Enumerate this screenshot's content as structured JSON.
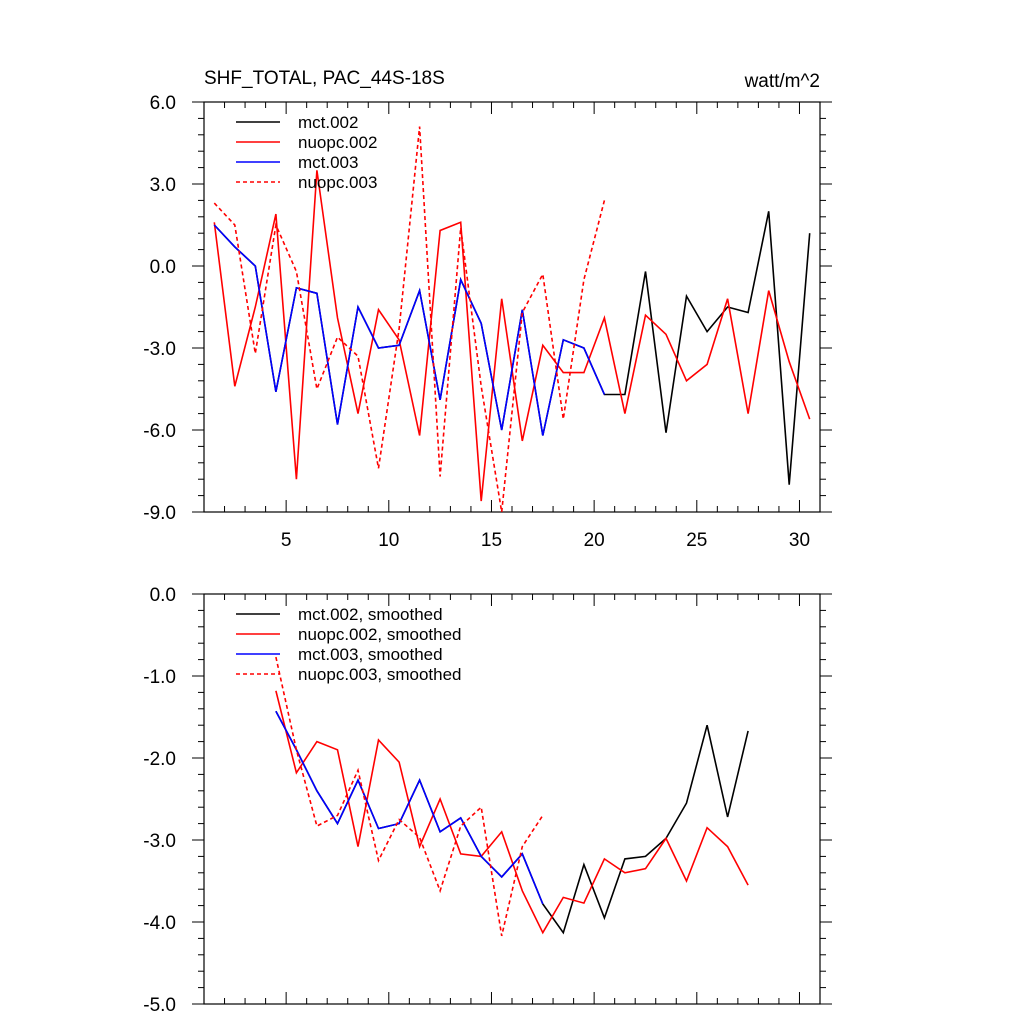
{
  "chart_data": [
    {
      "type": "line",
      "title": "SHF_TOTAL, PAC_44S-18S",
      "units": "watt/m^2",
      "xlim": [
        1,
        31
      ],
      "ylim": [
        -9.0,
        6.0
      ],
      "x_ticks": [
        5,
        10,
        15,
        20,
        25,
        30
      ],
      "x_tick_labels": [
        "5",
        "10",
        "15",
        "20",
        "25",
        "30"
      ],
      "y_ticks": [
        -9.0,
        -6.0,
        -3.0,
        0.0,
        3.0,
        6.0
      ],
      "y_tick_labels": [
        "-9.0",
        "-6.0",
        "-3.0",
        "0.0",
        "3.0",
        "6.0"
      ],
      "legend_position": "top-left",
      "series": [
        {
          "name": "mct.002",
          "color": "#000000",
          "dash": "solid",
          "x": [
            1.5,
            2.5,
            3.5,
            4.5,
            5.5,
            6.5,
            7.5,
            8.5,
            9.5,
            10.5,
            11.5,
            12.5,
            13.5,
            14.5,
            15.5,
            16.5,
            17.5,
            18.5,
            19.5,
            20.5,
            21.5,
            22.5,
            23.5,
            24.5,
            25.5,
            26.5,
            27.5,
            28.5,
            29.5,
            30.5
          ],
          "values": [
            1.5,
            0.7,
            0.0,
            -4.6,
            -0.8,
            -1.0,
            -5.8,
            -1.5,
            -3.0,
            -2.9,
            -0.9,
            -4.9,
            -0.5,
            -2.1,
            -6.0,
            -1.6,
            -6.2,
            -2.7,
            -3.0,
            -4.7,
            -4.7,
            -0.2,
            -6.1,
            -1.1,
            -2.4,
            -1.5,
            -1.7,
            2.0,
            -8.0,
            1.2
          ]
        },
        {
          "name": "nuopc.002",
          "color": "#ff0000",
          "dash": "solid",
          "x": [
            1.5,
            2.5,
            3.5,
            4.5,
            5.5,
            6.5,
            7.5,
            8.5,
            9.5,
            10.5,
            11.5,
            12.5,
            13.5,
            14.5,
            15.5,
            16.5,
            17.5,
            18.5,
            19.5,
            20.5,
            21.5,
            22.5,
            23.5,
            24.5,
            25.5,
            26.5,
            27.5,
            28.5,
            29.5,
            30.5
          ],
          "values": [
            1.6,
            -4.4,
            -1.5,
            1.9,
            -7.8,
            3.5,
            -1.9,
            -5.4,
            -1.6,
            -2.7,
            -6.2,
            1.3,
            1.6,
            -8.6,
            -1.2,
            -6.4,
            -2.9,
            -3.9,
            -3.9,
            -1.9,
            -5.4,
            -1.8,
            -2.5,
            -4.2,
            -3.6,
            -1.2,
            -5.4,
            -0.9,
            -3.5,
            -5.6
          ]
        },
        {
          "name": "mct.003",
          "color": "#0000ff",
          "dash": "solid",
          "x": [
            1.5,
            2.5,
            3.5,
            4.5,
            5.5,
            6.5,
            7.5,
            8.5,
            9.5,
            10.5,
            11.5,
            12.5,
            13.5,
            14.5,
            15.5,
            16.5,
            17.5,
            18.5,
            19.5,
            20.5
          ],
          "values": [
            1.5,
            0.7,
            0.0,
            -4.6,
            -0.8,
            -1.0,
            -5.8,
            -1.5,
            -3.0,
            -2.9,
            -0.9,
            -4.9,
            -0.5,
            -2.1,
            -6.0,
            -1.6,
            -6.2,
            -2.7,
            -3.0,
            -4.7
          ]
        },
        {
          "name": "nuopc.003",
          "color": "#ff0000",
          "dash": "dashed",
          "x": [
            1.5,
            2.5,
            3.5,
            4.5,
            5.5,
            6.5,
            7.5,
            8.5,
            9.5,
            10.5,
            11.5,
            12.5,
            13.5,
            14.5,
            15.5,
            16.5,
            17.5,
            18.5,
            19.5,
            20.5
          ],
          "values": [
            2.3,
            1.5,
            -3.2,
            1.5,
            -0.2,
            -4.5,
            -2.6,
            -3.3,
            -7.4,
            -2.3,
            5.1,
            -7.7,
            1.4,
            -4.4,
            -9.0,
            -1.7,
            -0.3,
            -5.6,
            -0.5,
            2.4
          ]
        }
      ]
    },
    {
      "type": "line",
      "xlim": [
        1,
        31
      ],
      "ylim": [
        -5.0,
        0.0
      ],
      "x_ticks": [
        5,
        10,
        15,
        20,
        25,
        30
      ],
      "y_ticks": [
        -5.0,
        -4.0,
        -3.0,
        -2.0,
        -1.0,
        0.0
      ],
      "y_tick_labels": [
        "-5.0",
        "-4.0",
        "-3.0",
        "-2.0",
        "-1.0",
        "0.0"
      ],
      "legend_position": "top-left",
      "series": [
        {
          "name": "mct.002, smoothed",
          "color": "#000000",
          "dash": "solid",
          "x": [
            4.5,
            5.5,
            6.5,
            7.5,
            8.5,
            9.5,
            10.5,
            11.5,
            12.5,
            13.5,
            14.5,
            15.5,
            16.5,
            17.5,
            18.5,
            19.5,
            20.5,
            21.5,
            22.5,
            23.5,
            24.5,
            25.5,
            26.5,
            27.5
          ],
          "values": [
            -1.43,
            -1.9,
            -2.4,
            -2.8,
            -2.27,
            -2.86,
            -2.8,
            -2.27,
            -2.9,
            -2.73,
            -3.2,
            -3.45,
            -3.17,
            -3.78,
            -4.13,
            -3.3,
            -3.95,
            -3.23,
            -3.2,
            -2.98,
            -2.55,
            -1.6,
            -2.72,
            -1.67
          ]
        },
        {
          "name": "nuopc.002, smoothed",
          "color": "#ff0000",
          "dash": "solid",
          "x": [
            4.5,
            5.5,
            6.5,
            7.5,
            8.5,
            9.5,
            10.5,
            11.5,
            12.5,
            13.5,
            14.5,
            15.5,
            16.5,
            17.5,
            18.5,
            19.5,
            20.5,
            21.5,
            22.5,
            23.5,
            24.5,
            25.5,
            26.5,
            27.5
          ],
          "values": [
            -1.18,
            -2.18,
            -1.8,
            -1.9,
            -3.08,
            -1.78,
            -2.05,
            -3.08,
            -2.5,
            -3.17,
            -3.2,
            -2.9,
            -3.62,
            -4.13,
            -3.7,
            -3.77,
            -3.23,
            -3.4,
            -3.35,
            -2.98,
            -3.5,
            -2.85,
            -3.08,
            -3.55
          ]
        },
        {
          "name": "mct.003, smoothed",
          "color": "#0000ff",
          "dash": "solid",
          "x": [
            4.5,
            5.5,
            6.5,
            7.5,
            8.5,
            9.5,
            10.5,
            11.5,
            12.5,
            13.5,
            14.5,
            15.5,
            16.5,
            17.5
          ],
          "values": [
            -1.43,
            -1.9,
            -2.4,
            -2.8,
            -2.27,
            -2.86,
            -2.8,
            -2.27,
            -2.9,
            -2.73,
            -3.2,
            -3.45,
            -3.17,
            -3.78
          ]
        },
        {
          "name": "nuopc.003, smoothed",
          "color": "#ff0000",
          "dash": "dashed",
          "x": [
            4.5,
            5.5,
            6.5,
            7.5,
            8.5,
            9.5,
            10.5,
            11.5,
            12.5,
            13.5,
            14.5,
            15.5,
            16.5,
            17.5
          ],
          "values": [
            -0.77,
            -1.9,
            -2.83,
            -2.7,
            -2.15,
            -3.25,
            -2.75,
            -2.97,
            -3.62,
            -2.83,
            -2.6,
            -4.17,
            -3.08,
            -2.7
          ]
        }
      ]
    }
  ]
}
